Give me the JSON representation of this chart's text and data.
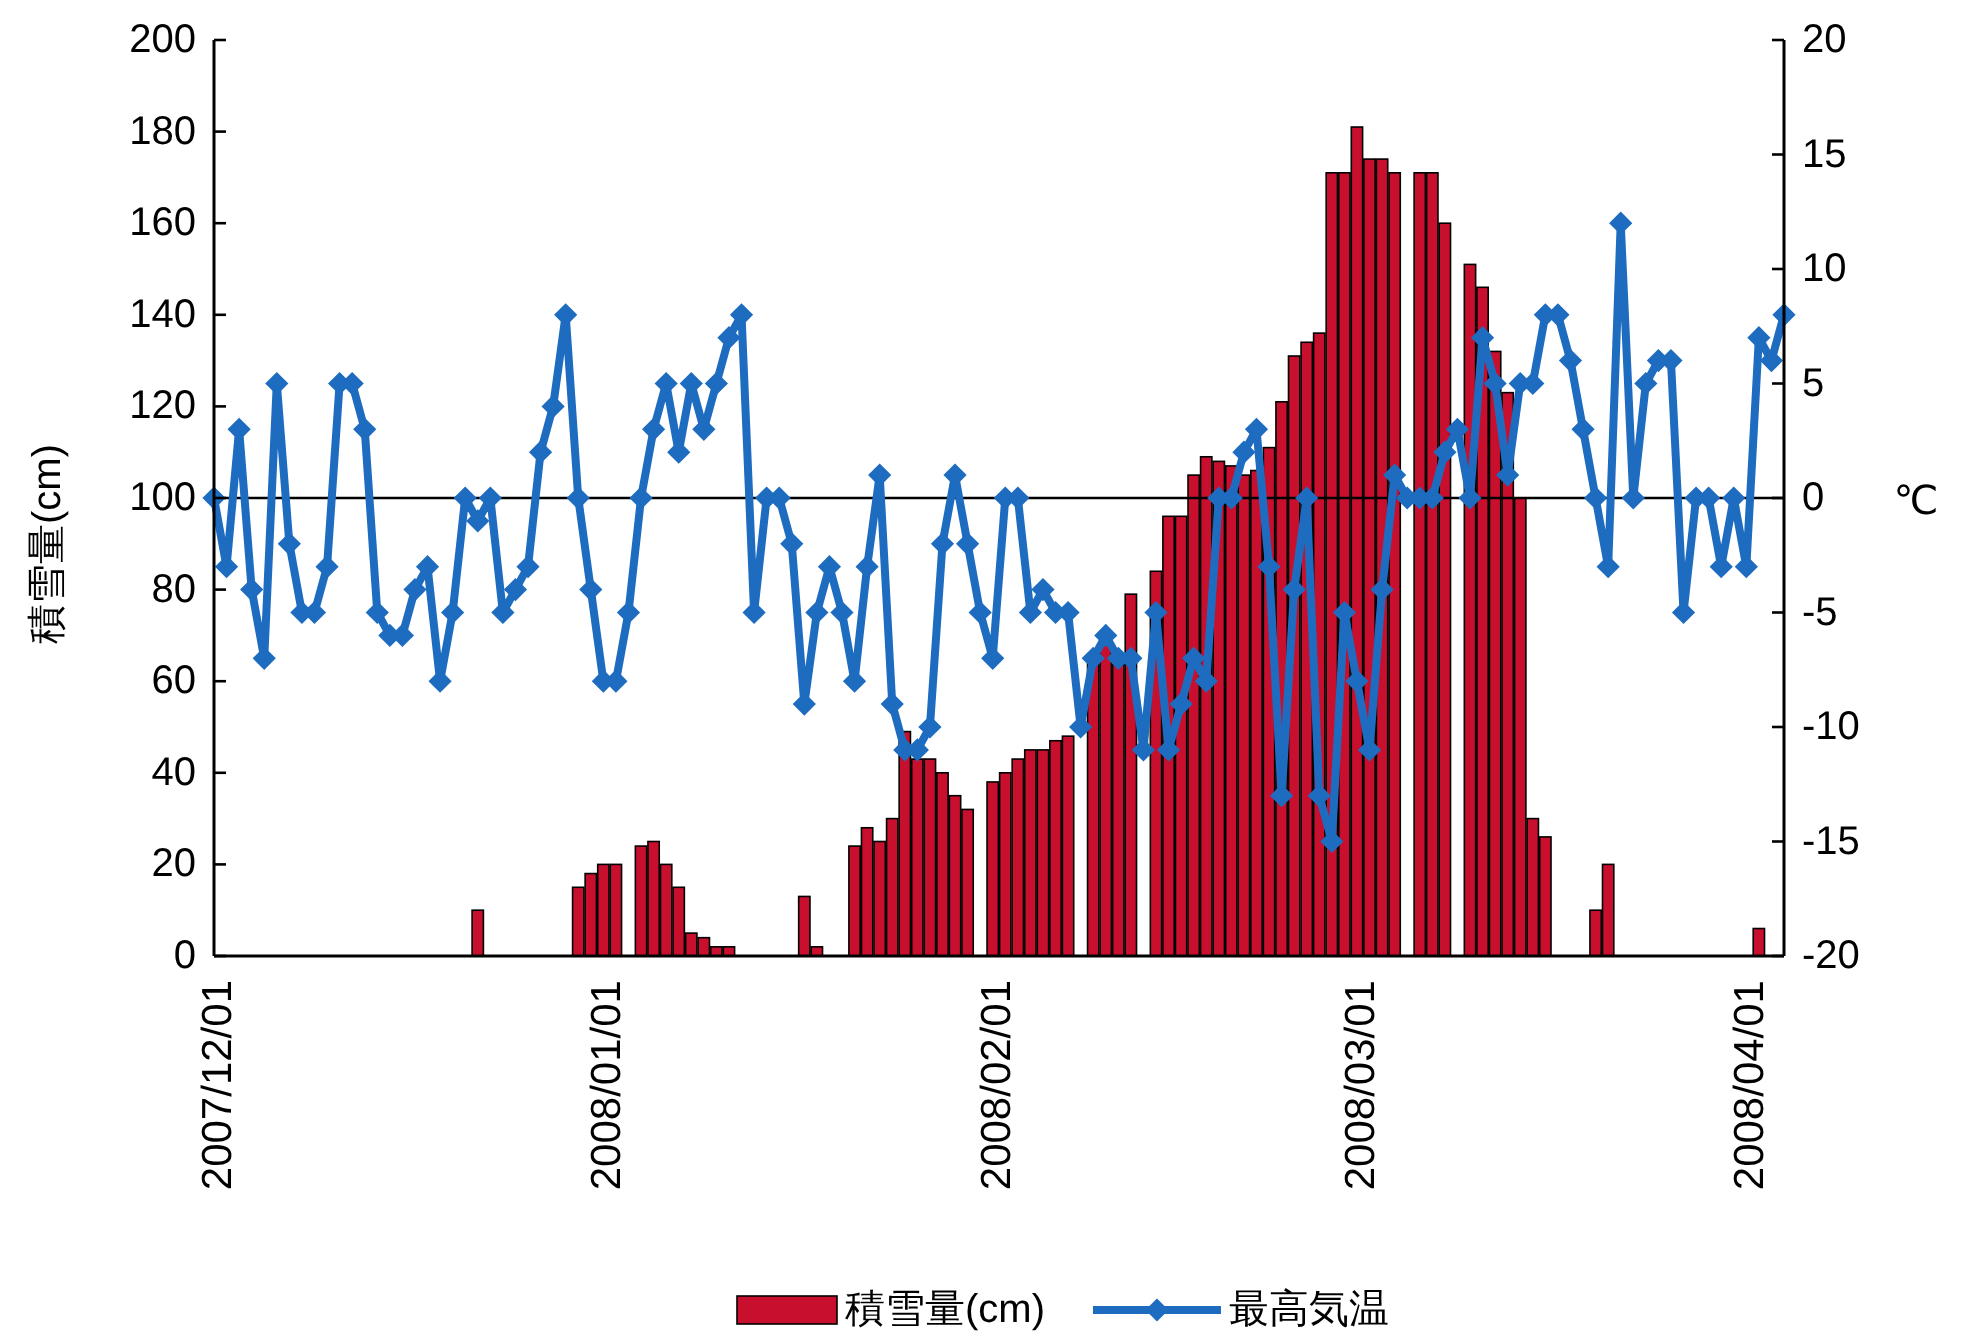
{
  "chart_data": {
    "type": "bar",
    "ylabel": "積雪量(cm)",
    "y2label": "℃",
    "x": [
      "2007-12-01",
      "2007-12-02",
      "2007-12-03",
      "2007-12-04",
      "2007-12-05",
      "2007-12-06",
      "2007-12-07",
      "2007-12-08",
      "2007-12-09",
      "2007-12-10",
      "2007-12-11",
      "2007-12-12",
      "2007-12-13",
      "2007-12-14",
      "2007-12-15",
      "2007-12-16",
      "2007-12-17",
      "2007-12-18",
      "2007-12-19",
      "2007-12-20",
      "2007-12-21",
      "2007-12-22",
      "2007-12-23",
      "2007-12-24",
      "2007-12-25",
      "2007-12-26",
      "2007-12-27",
      "2007-12-28",
      "2007-12-29",
      "2007-12-30",
      "2007-12-31",
      "2008-01-01",
      "2008-01-02",
      "2008-01-03",
      "2008-01-04",
      "2008-01-05",
      "2008-01-06",
      "2008-01-07",
      "2008-01-08",
      "2008-01-09",
      "2008-01-10",
      "2008-01-11",
      "2008-01-12",
      "2008-01-13",
      "2008-01-14",
      "2008-01-15",
      "2008-01-16",
      "2008-01-17",
      "2008-01-18",
      "2008-01-19",
      "2008-01-20",
      "2008-01-21",
      "2008-01-22",
      "2008-01-23",
      "2008-01-24",
      "2008-01-25",
      "2008-01-26",
      "2008-01-27",
      "2008-01-28",
      "2008-01-29",
      "2008-01-30",
      "2008-01-31",
      "2008-02-01",
      "2008-02-02",
      "2008-02-03",
      "2008-02-04",
      "2008-02-05",
      "2008-02-06",
      "2008-02-07",
      "2008-02-08",
      "2008-02-09",
      "2008-02-10",
      "2008-02-11",
      "2008-02-12",
      "2008-02-13",
      "2008-02-14",
      "2008-02-15",
      "2008-02-16",
      "2008-02-17",
      "2008-02-18",
      "2008-02-19",
      "2008-02-20",
      "2008-02-21",
      "2008-02-22",
      "2008-02-23",
      "2008-02-24",
      "2008-02-25",
      "2008-02-26",
      "2008-02-27",
      "2008-02-28",
      "2008-02-29",
      "2008-03-01",
      "2008-03-02",
      "2008-03-03",
      "2008-03-04",
      "2008-03-05",
      "2008-03-06",
      "2008-03-07",
      "2008-03-08",
      "2008-03-09",
      "2008-03-10",
      "2008-03-11",
      "2008-03-12",
      "2008-03-13",
      "2008-03-14",
      "2008-03-15",
      "2008-03-16",
      "2008-03-17",
      "2008-03-18",
      "2008-03-19",
      "2008-03-20",
      "2008-03-21",
      "2008-03-22",
      "2008-03-23",
      "2008-03-24",
      "2008-03-25",
      "2008-03-26",
      "2008-03-27",
      "2008-03-28",
      "2008-03-29",
      "2008-03-30",
      "2008-03-31",
      "2008-04-01",
      "2008-04-02",
      "2008-04-03",
      "2008-04-04"
    ],
    "series": [
      {
        "name": "積雪量(cm)",
        "color": "#c8102e",
        "values": [
          0,
          0,
          0,
          0,
          0,
          0,
          0,
          0,
          0,
          0,
          0,
          0,
          0,
          0,
          0,
          0,
          0,
          0,
          0,
          0,
          0,
          10,
          0,
          0,
          0,
          0,
          0,
          0,
          0,
          15,
          18,
          20,
          20,
          null,
          24,
          25,
          20,
          15,
          5,
          4,
          2,
          2,
          0,
          0,
          0,
          0,
          0,
          13,
          2,
          0,
          0,
          24,
          28,
          25,
          30,
          49,
          43,
          43,
          40,
          35,
          32,
          null,
          38,
          40,
          43,
          45,
          45,
          47,
          48,
          null,
          65,
          68,
          65,
          79,
          null,
          84,
          96,
          96,
          105,
          109,
          108,
          107,
          105,
          106,
          111,
          121,
          131,
          134,
          136,
          171,
          171,
          181,
          174,
          174,
          171,
          null,
          171,
          171,
          160,
          null,
          151,
          146,
          132,
          123,
          100,
          30,
          26,
          0,
          0,
          0,
          10,
          20,
          0,
          0,
          0,
          0,
          0,
          0,
          0,
          0,
          0,
          0,
          0,
          6,
          0,
          0
        ]
      },
      {
        "name": "最高気温",
        "type": "line",
        "axis": "y2",
        "color": "#1e6cc0",
        "values": [
          0,
          -3,
          3,
          -4,
          -7,
          5,
          -2,
          -5,
          -5,
          -3,
          5,
          5,
          3,
          -5,
          -6,
          -6,
          -4,
          -3,
          -8,
          -5,
          0,
          -1,
          0,
          -5,
          -4,
          -3,
          2,
          4,
          8,
          0,
          -4,
          -8,
          -8,
          -5,
          0,
          3,
          5,
          2,
          5,
          3,
          5,
          7,
          8,
          -5,
          0,
          0,
          -2,
          -9,
          -5,
          -3,
          -5,
          -8,
          -3,
          1,
          -9,
          -11,
          -11,
          -10,
          -2,
          1,
          -2,
          -5,
          -7,
          0,
          0,
          -5,
          -4,
          -5,
          -5,
          -10,
          -7,
          -6,
          -7,
          -7,
          -11,
          -5,
          -11,
          -9,
          -7,
          -8,
          0,
          0,
          2,
          3,
          -3,
          -13,
          -4,
          0,
          -13,
          -15,
          -5,
          -8,
          -11,
          -4,
          1,
          0,
          0,
          0,
          2,
          3,
          0,
          7,
          5,
          1,
          5,
          5,
          8,
          8,
          6,
          3,
          0,
          -3,
          12,
          0,
          5,
          6,
          6,
          -5,
          0,
          0,
          -3,
          0,
          -3,
          7,
          6,
          8
        ]
      }
    ],
    "xlim": [
      "2007-12-01",
      "2008-04-04"
    ],
    "xticks": [
      {
        "value": "2007-12-01",
        "label": "2007/12/01"
      },
      {
        "value": "2008-01-01",
        "label": "2008/01/01"
      },
      {
        "value": "2008-02-01",
        "label": "2008/02/01"
      },
      {
        "value": "2008-03-01",
        "label": "2008/03/01"
      },
      {
        "value": "2008-04-01",
        "label": "2008/04/01"
      }
    ],
    "ylim": [
      0,
      200
    ],
    "yticks": [
      0,
      20,
      40,
      60,
      80,
      100,
      120,
      140,
      160,
      180,
      200
    ],
    "y2lim": [
      -20,
      20
    ],
    "y2ticks": [
      -20,
      -15,
      -10,
      -5,
      0,
      5,
      10,
      15,
      20
    ],
    "ref_lines": [
      {
        "axis": "y2",
        "value": 0,
        "color": "#000000"
      }
    ],
    "legend": "bottom",
    "marker": "diamond",
    "line_style": "solid"
  }
}
